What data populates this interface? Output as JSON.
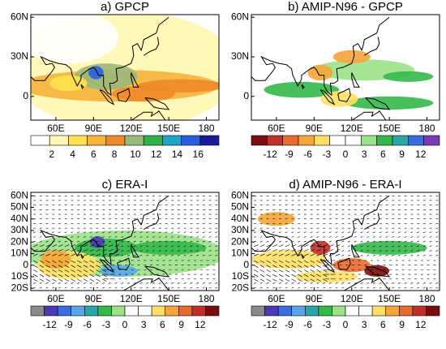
{
  "panels": [
    {
      "title": "a) GPCP",
      "kind": "precip",
      "latlim": [
        -18,
        62
      ],
      "lonlim": [
        40,
        190
      ],
      "lat_ticks": [
        {
          "value": 60,
          "label": "60N"
        },
        {
          "value": 30,
          "label": "30N"
        },
        {
          "value": 0,
          "label": "0"
        }
      ],
      "lon_ticks": [
        {
          "value": 60,
          "label": "60E"
        },
        {
          "value": 90,
          "label": "90E"
        },
        {
          "value": 120,
          "label": "120E"
        },
        {
          "value": 150,
          "label": "150E"
        },
        {
          "value": 180,
          "label": "180"
        }
      ],
      "colorbar": {
        "labels": [
          2,
          4,
          6,
          8,
          10,
          12,
          14,
          16
        ],
        "colors": [
          "#ffffff",
          "#fff7b0",
          "#ffe24d",
          "#f7b33a",
          "#ee8a2a",
          "#9ab87a",
          "#2fb24a",
          "#1fa3c8",
          "#2a5ee0",
          "#1a1a9a"
        ]
      }
    },
    {
      "title": "b) AMIP-N96  -  GPCP",
      "kind": "diff",
      "latlim": [
        -18,
        62
      ],
      "lonlim": [
        40,
        190
      ],
      "lat_ticks": [
        {
          "value": 60,
          "label": "60N"
        },
        {
          "value": 30,
          "label": "30N"
        },
        {
          "value": 0,
          "label": "0"
        }
      ],
      "lon_ticks": [
        {
          "value": 60,
          "label": "60E"
        },
        {
          "value": 90,
          "label": "90E"
        },
        {
          "value": 120,
          "label": "120E"
        },
        {
          "value": 150,
          "label": "150E"
        },
        {
          "value": 180,
          "label": "180"
        }
      ],
      "colorbar": {
        "labels": [
          -12,
          -9,
          -6,
          -3,
          0,
          3,
          6,
          9,
          12
        ],
        "colors": [
          "#7a0d0d",
          "#c0302a",
          "#e86a2e",
          "#f5a53a",
          "#ffe066",
          "#ffffff",
          "#ffffff",
          "#9be08a",
          "#34b84a",
          "#2aa6a6",
          "#3a6ee0",
          "#7a3ab8"
        ]
      }
    },
    {
      "title": "c) ERA-I",
      "kind": "era",
      "latlim": [
        -22,
        63
      ],
      "lonlim": [
        40,
        190
      ],
      "lat_ticks": [
        {
          "value": 60,
          "label": "60N"
        },
        {
          "value": 50,
          "label": "50N"
        },
        {
          "value": 40,
          "label": "40N"
        },
        {
          "value": 30,
          "label": "30N"
        },
        {
          "value": 20,
          "label": "20N"
        },
        {
          "value": 10,
          "label": "10N"
        },
        {
          "value": 0,
          "label": "0"
        },
        {
          "value": -10,
          "label": "10S"
        },
        {
          "value": -20,
          "label": "20S"
        }
      ],
      "lon_ticks": [
        {
          "value": 60,
          "label": "60E"
        },
        {
          "value": 90,
          "label": "90E"
        },
        {
          "value": 120,
          "label": "120E"
        },
        {
          "value": 150,
          "label": "150E"
        },
        {
          "value": 180,
          "label": "180"
        }
      ],
      "colorbar": {
        "labels": [
          -12,
          -9,
          -6,
          -3,
          0,
          3,
          6,
          9,
          12
        ],
        "colors": [
          "#8a8a8a",
          "#4a3ab8",
          "#3a6ee0",
          "#5aa6e8",
          "#2aa6a6",
          "#34b84a",
          "#9be08a",
          "#ffffff",
          "#ffffff",
          "#ffe066",
          "#f5a53a",
          "#e86a2e",
          "#c0302a",
          "#7a0d0d"
        ]
      }
    },
    {
      "title": "d) AMIP-N96  -  ERA-I",
      "kind": "eradiff",
      "latlim": [
        -22,
        63
      ],
      "lonlim": [
        40,
        190
      ],
      "lat_ticks": [
        {
          "value": 60,
          "label": "60N"
        },
        {
          "value": 50,
          "label": "50N"
        },
        {
          "value": 40,
          "label": "40N"
        },
        {
          "value": 30,
          "label": "30N"
        },
        {
          "value": 20,
          "label": "20N"
        },
        {
          "value": 10,
          "label": "10N"
        },
        {
          "value": 0,
          "label": "0"
        },
        {
          "value": -10,
          "label": "10S"
        },
        {
          "value": -20,
          "label": "20S"
        }
      ],
      "lon_ticks": [
        {
          "value": 60,
          "label": "60E"
        },
        {
          "value": 90,
          "label": "90E"
        },
        {
          "value": 120,
          "label": "120E"
        },
        {
          "value": 150,
          "label": "150E"
        },
        {
          "value": 180,
          "label": "180"
        }
      ],
      "colorbar": {
        "labels": [
          -12,
          -9,
          -6,
          -3,
          0,
          3,
          6,
          9,
          12
        ],
        "colors": [
          "#8a8a8a",
          "#4a3ab8",
          "#3a6ee0",
          "#5aa6e8",
          "#2aa6a6",
          "#34b84a",
          "#9be08a",
          "#ffffff",
          "#ffffff",
          "#ffe066",
          "#f5a53a",
          "#e86a2e",
          "#c0302a",
          "#7a0d0d"
        ]
      }
    }
  ]
}
